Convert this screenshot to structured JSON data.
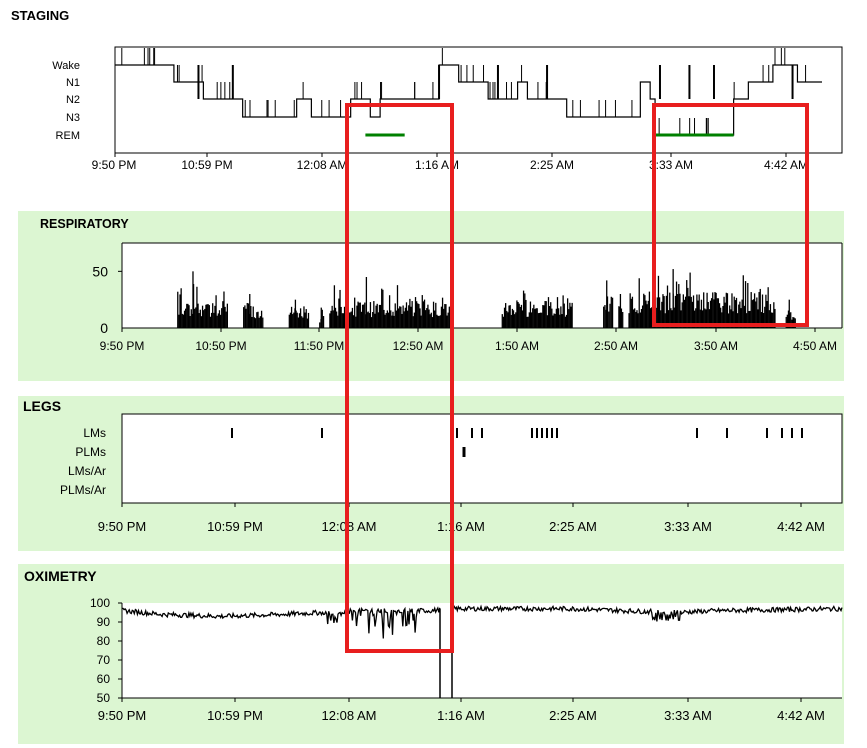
{
  "staging": {
    "title": "STAGING",
    "stages": [
      "Wake",
      "N1",
      "N2",
      "N3",
      "REM"
    ],
    "time_ticks": [
      "9:50 PM",
      "10:59 PM",
      "12:08 AM",
      "1:16 AM",
      "2:25 AM",
      "3:33 AM",
      "4:42 AM"
    ]
  },
  "respiratory": {
    "title": "RESPIRATORY",
    "y_ticks": [
      "0",
      "50"
    ],
    "time_ticks": [
      "9:50 PM",
      "10:50 PM",
      "11:50 PM",
      "12:50 AM",
      "1:50 AM",
      "2:50 AM",
      "3:50 AM",
      "4:50 AM"
    ]
  },
  "legs": {
    "title": "LEGS",
    "rows": [
      "LMs",
      "PLMs",
      "LMs/Ar",
      "PLMs/Ar"
    ],
    "time_ticks": [
      "9:50 PM",
      "10:59 PM",
      "12:08 AM",
      "1:16 AM",
      "2:25 AM",
      "3:33 AM",
      "4:42 AM"
    ]
  },
  "oximetry": {
    "title": "OXIMETRY",
    "y_ticks": [
      "100",
      "90",
      "80",
      "70",
      "60",
      "50"
    ],
    "time_ticks": [
      "9:50 PM",
      "10:59 PM",
      "12:08 AM",
      "1:16 AM",
      "2:25 AM",
      "3:33 AM",
      "4:42 AM"
    ]
  },
  "colors": {
    "panel_bg": "#dcf6d2",
    "trace": "#000000",
    "rem": "#008000",
    "highlight": "#e81e1e"
  },
  "chart_data": [
    {
      "type": "line",
      "name_ref": "staging",
      "categories": [
        "Wake",
        "N1",
        "N2",
        "N3",
        "REM"
      ],
      "x_unit": "hours after 9:50 PM",
      "xlim": [
        0,
        7.2
      ],
      "segments": [
        [
          0,
          0.6,
          "Wake"
        ],
        [
          0.6,
          0.9,
          "N1"
        ],
        [
          0.9,
          1.3,
          "N2"
        ],
        [
          1.3,
          1.85,
          "N3"
        ],
        [
          1.85,
          2.0,
          "N2"
        ],
        [
          2.0,
          2.4,
          "N3"
        ],
        [
          2.4,
          2.6,
          "N2"
        ],
        [
          2.6,
          2.7,
          "N3"
        ],
        [
          2.7,
          3.3,
          "N2"
        ],
        [
          3.3,
          3.5,
          "Wake"
        ],
        [
          3.5,
          3.8,
          "N1"
        ],
        [
          3.8,
          4.1,
          "N2"
        ],
        [
          4.1,
          4.2,
          "N1"
        ],
        [
          4.2,
          4.6,
          "N2"
        ],
        [
          4.6,
          5.35,
          "N3"
        ],
        [
          5.35,
          5.45,
          "N1"
        ],
        [
          5.45,
          5.5,
          "N2"
        ],
        [
          5.5,
          6.3,
          "REM"
        ],
        [
          6.3,
          6.45,
          "N2"
        ],
        [
          6.45,
          6.7,
          "N1"
        ],
        [
          6.7,
          6.95,
          "Wake"
        ],
        [
          6.95,
          7.2,
          "N1"
        ]
      ],
      "rem_periods": [
        [
          2.55,
          2.95
        ],
        [
          5.5,
          6.3
        ]
      ],
      "wake_spikes": [
        0.85,
        1.2,
        3.3,
        3.9,
        4.4,
        5.55,
        5.85,
        6.1,
        6.9
      ]
    },
    {
      "type": "bar",
      "name_ref": "respiratory",
      "ylim": [
        0,
        75
      ],
      "x_unit": "hours after 9:50 PM",
      "xlim": [
        0,
        7.1
      ],
      "event_clusters": [
        [
          0.55,
          1.05,
          22,
          50
        ],
        [
          1.2,
          1.4,
          20,
          30
        ],
        [
          1.65,
          1.85,
          20,
          25
        ],
        [
          1.95,
          2.0,
          12,
          18
        ],
        [
          2.05,
          3.25,
          24,
          45
        ],
        [
          3.75,
          4.45,
          24,
          33
        ],
        [
          4.75,
          4.85,
          30,
          42
        ],
        [
          4.9,
          4.95,
          20,
          30
        ],
        [
          5.0,
          6.45,
          32,
          52
        ],
        [
          6.55,
          6.65,
          15,
          25
        ]
      ]
    },
    {
      "type": "scatter",
      "name_ref": "legs",
      "x_unit": "hours after 9:50 PM",
      "xlim": [
        0,
        7.2
      ],
      "LMs": [
        1.1,
        2.0,
        3.35,
        3.5,
        3.6,
        4.1,
        4.15,
        4.2,
        4.25,
        4.3,
        4.35,
        5.75,
        6.05,
        6.45,
        6.6,
        6.7,
        6.8
      ],
      "PLMs": [
        3.42
      ],
      "LMs/Ar": [],
      "PLMs/Ar": []
    },
    {
      "type": "line",
      "name_ref": "oximetry",
      "ylim": [
        50,
        100
      ],
      "x_unit": "hours after 9:50 PM",
      "xlim": [
        0,
        7.2
      ],
      "baseline": [
        [
          0,
          96
        ],
        [
          0.4,
          94
        ],
        [
          1.0,
          93
        ],
        [
          1.6,
          94
        ],
        [
          2.0,
          95
        ],
        [
          2.4,
          96
        ],
        [
          3.0,
          96
        ],
        [
          3.1,
          96
        ],
        [
          3.3,
          97
        ],
        [
          4.5,
          97
        ],
        [
          5.0,
          96
        ],
        [
          5.5,
          95
        ],
        [
          6.0,
          96
        ],
        [
          7.2,
          97
        ]
      ],
      "dips": [
        [
          2.0,
          2.2,
          88
        ],
        [
          2.3,
          2.4,
          86
        ],
        [
          2.45,
          2.55,
          84
        ],
        [
          2.6,
          2.75,
          80
        ],
        [
          2.8,
          2.95,
          83
        ],
        [
          5.3,
          5.6,
          90
        ]
      ],
      "artifact_drops": [
        [
          3.18,
          50
        ],
        [
          3.3,
          50
        ]
      ]
    }
  ]
}
